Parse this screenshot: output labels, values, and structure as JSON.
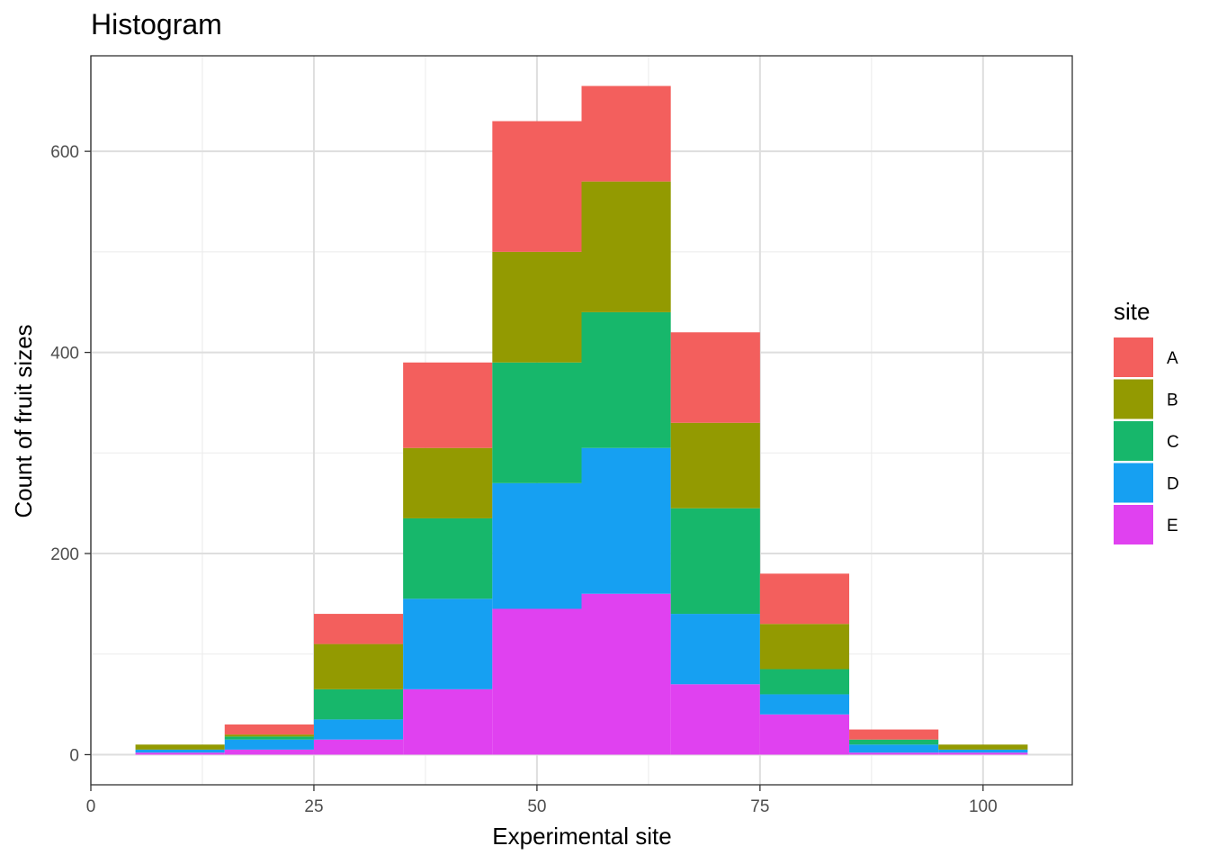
{
  "chart_data": {
    "type": "bar",
    "stacked": true,
    "title": "Histogram",
    "xlabel": "Experimental site",
    "ylabel": "Count of fruit sizes",
    "xlim": [
      0,
      110
    ],
    "ylim": [
      -30,
      695
    ],
    "x_ticks": [
      0,
      25,
      50,
      75,
      100
    ],
    "y_ticks": [
      0,
      200,
      400,
      600
    ],
    "grid": true,
    "legend": {
      "title": "site",
      "position": "right"
    },
    "bin_width": 10,
    "bin_centers": [
      10,
      20,
      30,
      40,
      50,
      60,
      70,
      80,
      90,
      100
    ],
    "series": [
      {
        "name": "E",
        "color": "#E041F0",
        "values": [
          2,
          5,
          15,
          65,
          145,
          160,
          70,
          40,
          2,
          2
        ]
      },
      {
        "name": "D",
        "color": "#16A0F2",
        "values": [
          3,
          10,
          20,
          90,
          125,
          145,
          70,
          20,
          8,
          3
        ]
      },
      {
        "name": "C",
        "color": "#17B76B",
        "values": [
          0,
          3,
          30,
          80,
          120,
          135,
          105,
          25,
          5,
          0
        ]
      },
      {
        "name": "B",
        "color": "#939A01",
        "values": [
          5,
          2,
          45,
          70,
          110,
          130,
          85,
          45,
          0,
          5
        ]
      },
      {
        "name": "A",
        "color": "#F35F5D",
        "values": [
          0,
          10,
          30,
          85,
          130,
          95,
          90,
          50,
          10,
          0
        ]
      }
    ],
    "legend_order": [
      "A",
      "B",
      "C",
      "D",
      "E"
    ]
  }
}
